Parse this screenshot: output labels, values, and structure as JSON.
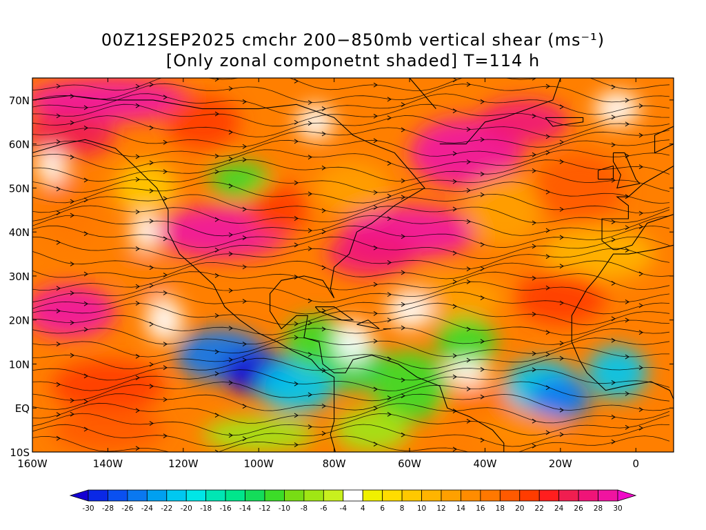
{
  "title": {
    "line1": "00Z12SEP2025 cmchr 200−850mb vertical shear (ms⁻¹)",
    "line2": "[Only zonal componetnt shaded] T=114 h"
  },
  "map": {
    "lon_range": [
      -160,
      10
    ],
    "lat_range": [
      -10,
      75
    ],
    "lon_ticks": [
      {
        "value": -160,
        "label": "160W"
      },
      {
        "value": -140,
        "label": "140W"
      },
      {
        "value": -120,
        "label": "120W"
      },
      {
        "value": -100,
        "label": "100W"
      },
      {
        "value": -80,
        "label": "80W"
      },
      {
        "value": -60,
        "label": "60W"
      },
      {
        "value": -40,
        "label": "40W"
      },
      {
        "value": -20,
        "label": "20W"
      },
      {
        "value": 0,
        "label": "0"
      }
    ],
    "lat_ticks": [
      {
        "value": 70,
        "label": "70N"
      },
      {
        "value": 60,
        "label": "60N"
      },
      {
        "value": 50,
        "label": "50N"
      },
      {
        "value": 40,
        "label": "40N"
      },
      {
        "value": 30,
        "label": "30N"
      },
      {
        "value": 20,
        "label": "20N"
      },
      {
        "value": 10,
        "label": "10N"
      },
      {
        "value": 0,
        "label": "EQ"
      },
      {
        "value": -10,
        "label": "10S"
      }
    ]
  },
  "colorbar": {
    "levels": [
      "-30",
      "-28",
      "-26",
      "-24",
      "-22",
      "-20",
      "-18",
      "-16",
      "-14",
      "-12",
      "-10",
      "-8",
      "-6",
      "-4",
      "4",
      "6",
      "8",
      "10",
      "12",
      "14",
      "16",
      "18",
      "20",
      "22",
      "24",
      "26",
      "28",
      "30"
    ],
    "colors": [
      "#1400d2",
      "#0a28e6",
      "#0a50f0",
      "#0a78f0",
      "#00a0f0",
      "#00c8f0",
      "#00e6e6",
      "#00e6b4",
      "#00e68c",
      "#14dc5a",
      "#3cdc28",
      "#78dc14",
      "#a0e614",
      "#c8f01e",
      "#ffffff",
      "#f0f000",
      "#ffdc00",
      "#ffc800",
      "#ffb400",
      "#ffa000",
      "#ff8c00",
      "#ff7800",
      "#ff5a00",
      "#ff3c00",
      "#ff1e1e",
      "#f01e50",
      "#f01478",
      "#f014a0",
      "#f00ac8"
    ]
  }
}
